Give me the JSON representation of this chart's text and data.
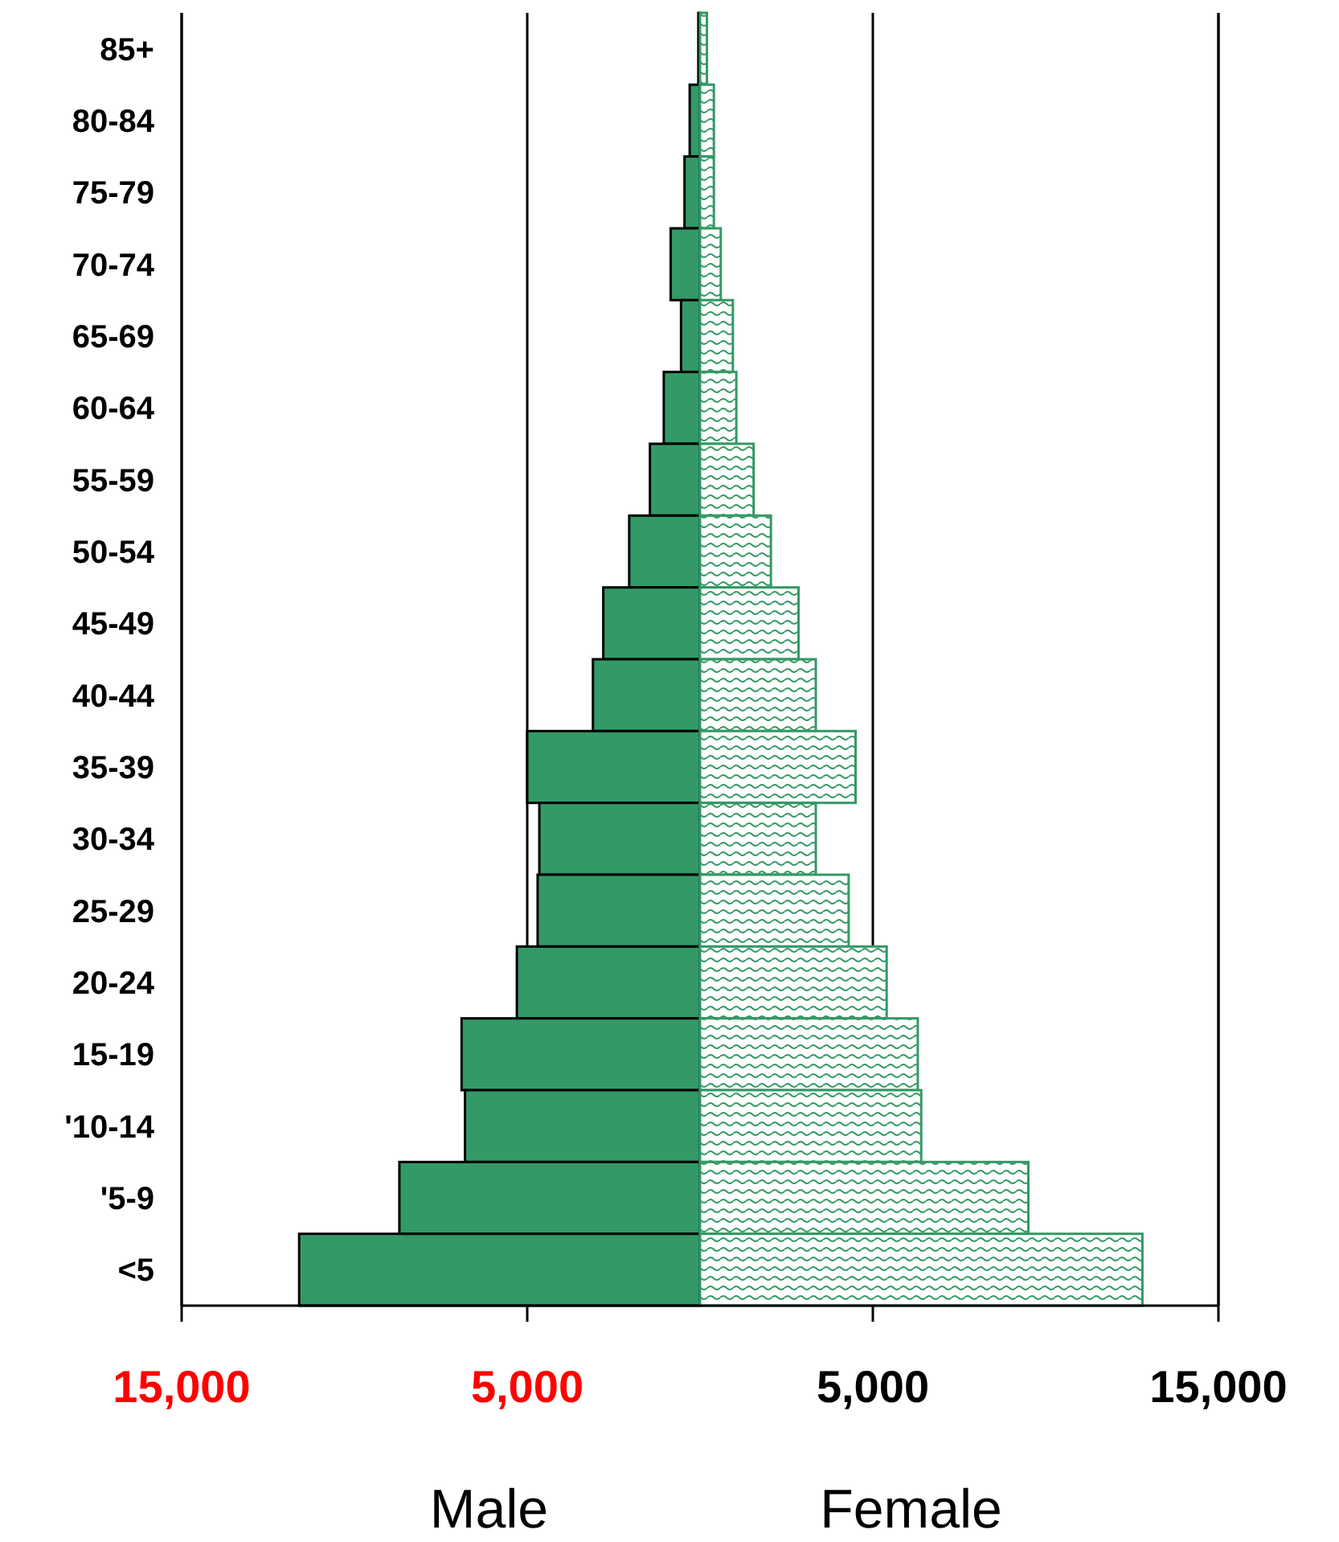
{
  "chart_data": {
    "type": "bar",
    "orientation": "horizontal",
    "stacked": true,
    "categories": [
      "85+",
      "80-84",
      "75-79",
      "70-74",
      "65-69",
      "60-64",
      "55-59",
      "50-54",
      "45-49",
      "40-44",
      "35-39",
      "30-34",
      "25-29",
      "20-24",
      "15-19",
      "'10-14",
      "'5-9",
      "<5"
    ],
    "series": [
      {
        "color": "#339966",
        "values": [
          -50,
          -300,
          -450,
          -850,
          -550,
          -1050,
          -1450,
          -2050,
          -2800,
          -3100,
          -5000,
          -4650,
          -4700,
          -5300,
          -6900,
          -6800,
          -8700,
          -11600
        ]
      },
      {
        "color": "#339966",
        "values": [
          200,
          400,
          400,
          600,
          950,
          1050,
          1550,
          2050,
          2850,
          3350,
          4500,
          3350,
          4300,
          5400,
          6300,
          6400,
          9500,
          12800
        ]
      }
    ],
    "xlim": [
      -15000,
      15000
    ],
    "xticks": [
      {
        "value": -15000,
        "label": "15,000"
      },
      {
        "value": -5000,
        "label": "5,000"
      },
      {
        "value": 5000,
        "label": "5,000"
      },
      {
        "value": 15000,
        "label": "15,000"
      }
    ],
    "grid": "x",
    "annotations": [
      "Male",
      "Female"
    ]
  }
}
